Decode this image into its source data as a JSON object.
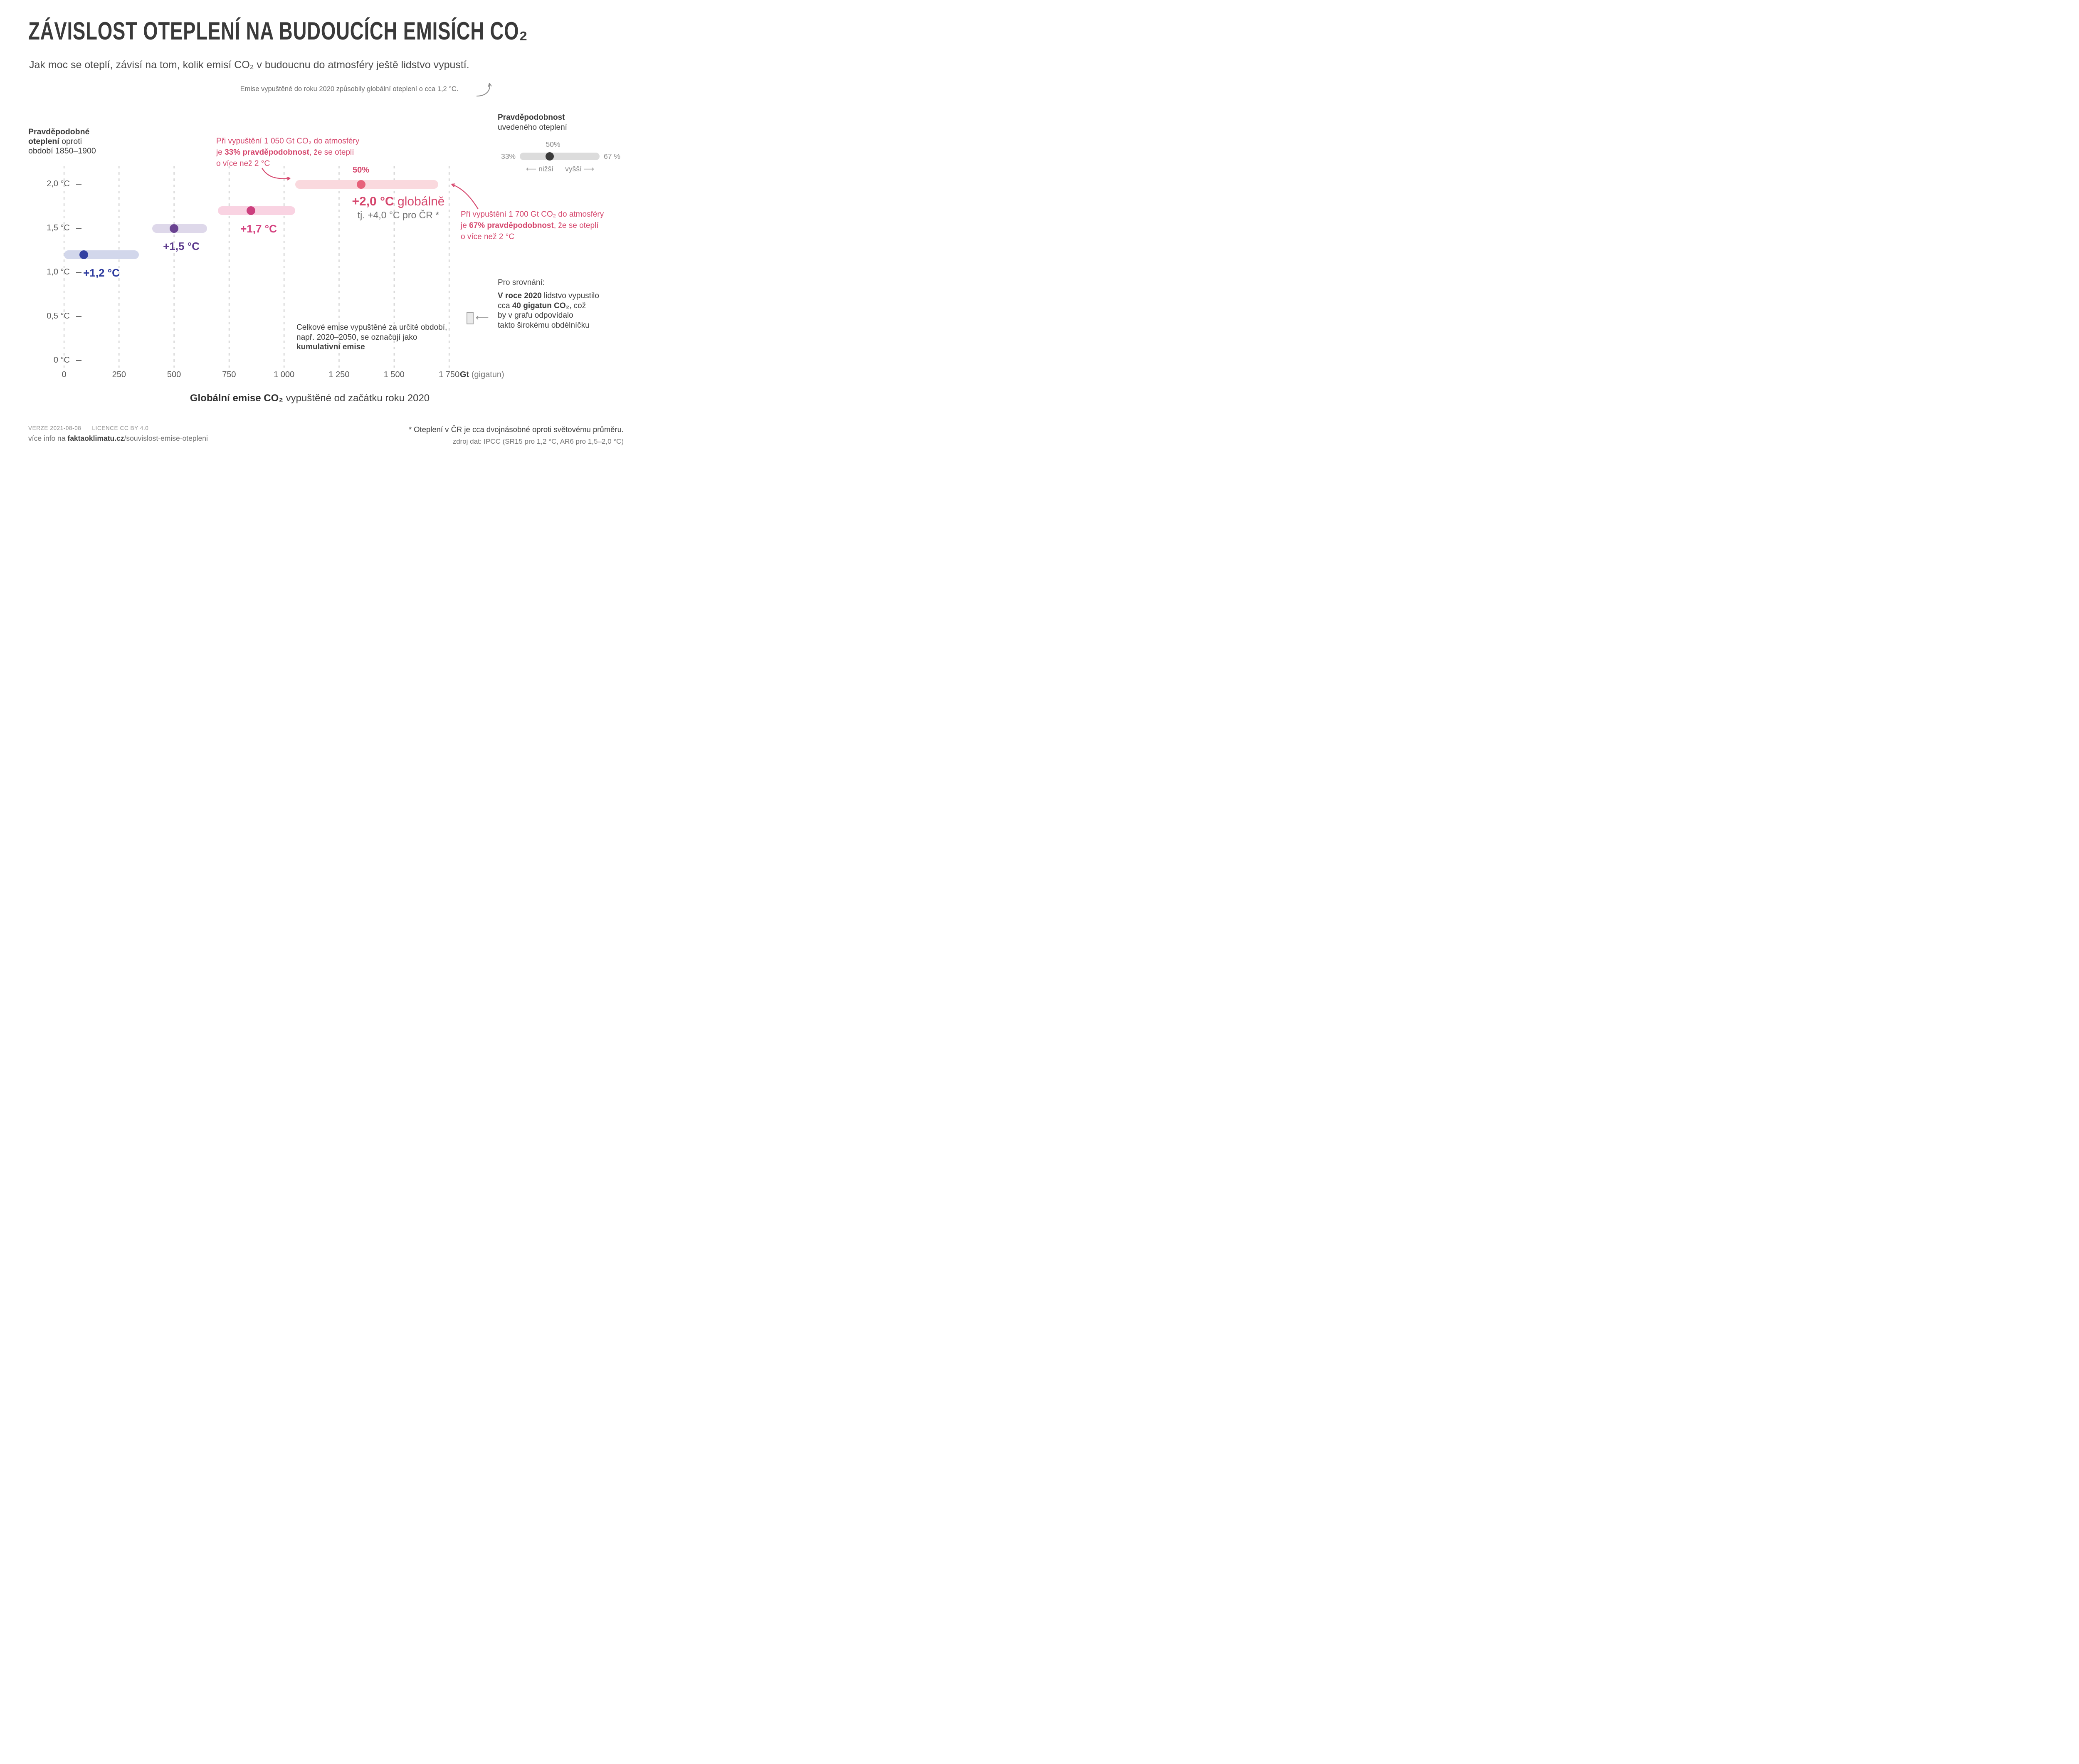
{
  "header": {
    "title": "ZÁVISLOST OTEPLENÍ NA BUDOUCÍCH EMISÍCH CO₂",
    "subtitle": "Jak moc se oteplí, závisí na tom, kolik emisí CO₂ v budoucnu do atmosféry ještě lidstvo vypustí.",
    "note_2020": "Emise vypuštěné do roku 2020 způsobily globální oteplení o cca 1,2 °C."
  },
  "legend": {
    "title": "Pravděpodobnost",
    "subtitle": "uvedeného oteplení",
    "top_label": "50%",
    "left_label": "33%",
    "right_label": "67 %",
    "lower": "⟵ nižší",
    "higher": "vyšší ⟶",
    "track_color": "#dcdcdc",
    "dot_color": "#3a3a3a"
  },
  "y_axis_label": {
    "l1": "Pravděpodobné",
    "l2_bold": "oteplení",
    "l2_rest": " oproti",
    "l3": "období 1850–1900"
  },
  "x_axis": {
    "unit_bold": "Gt",
    "unit_rest": " (gigatun)",
    "caption_bold": "Globální emise CO₂",
    "caption_rest": " vypuštěné od začátku roku 2020"
  },
  "chart_data": {
    "type": "bar",
    "orientation": "horizontal-range-bars",
    "title": "ZÁVISLOST OTEPLENÍ NA BUDOUCÍCH EMISÍCH CO₂",
    "xlabel": "Globální emise CO₂ vypuštěné od začátku roku 2020 (Gt, gigatun)",
    "ylabel": "Pravděpodobné oteplení oproti období 1850–1900 (°C)",
    "xlim": [
      0,
      1750
    ],
    "grid": "vertical-dashed",
    "x_ticks": [
      0,
      250,
      500,
      750,
      1000,
      1250,
      1500,
      1750
    ],
    "x_tick_labels": [
      "0",
      "250",
      "500",
      "750",
      "1 000",
      "1 250",
      "1 500",
      "1 750"
    ],
    "y_ticks": [
      2.0,
      1.5,
      1.0,
      0.5,
      0
    ],
    "y_tick_labels": [
      "2,0 °C",
      "1,5 °C",
      "1,0 °C",
      "0,5 °C",
      "0 °C"
    ],
    "series": [
      {
        "name": "+1,2 °C",
        "warming_c": 1.2,
        "range_gt": [
          0,
          340
        ],
        "median_gt": 90,
        "probability_at_median": "50%",
        "bar_color": "#d2d7eb",
        "dot_color": "#3341a1",
        "label_color": "#2c3a9e"
      },
      {
        "name": "+1,5 °C",
        "warming_c": 1.5,
        "range_gt": [
          400,
          650
        ],
        "median_gt": 500,
        "probability_at_median": "50%",
        "bar_color": "#ded8ea",
        "dot_color": "#6a4391",
        "label_color": "#5c3a8c"
      },
      {
        "name": "+1,7 °C",
        "warming_c": 1.7,
        "range_gt": [
          700,
          1050
        ],
        "median_gt": 850,
        "probability_at_median": "50%",
        "bar_color": "#f9d3e2",
        "dot_color": "#cc3f7e",
        "label_color": "#d4417f"
      },
      {
        "name": "+2,0 °C",
        "warming_c": 2.0,
        "range_gt": [
          1050,
          1700
        ],
        "median_gt": 1350,
        "probability_at_median": "50%",
        "bar_color": "#fad9de",
        "dot_color": "#e7617a",
        "label_color": "#d6486e"
      }
    ]
  },
  "labels_20": {
    "fifty": "50%",
    "big_bold": "+2,0 °C",
    "big_rest": " globálně",
    "sub": "tj. +4,0 °C pro ČR *"
  },
  "annotations": {
    "ann33": {
      "l1": "Při vypuštění 1 050 Gt CO₂ do atmosféry",
      "l2a": "je ",
      "l2b": "33% pravděpodobnost",
      "l2c": ", že se oteplí",
      "l3": "o více než 2 °C"
    },
    "ann67": {
      "l1": "Při vypuštění 1 700 Gt CO₂ do atmosféry",
      "l2a": "je ",
      "l2b": "67% pravděpodobnost",
      "l2c": ", že se oteplí",
      "l3": "o více než 2 °C"
    },
    "cumulative": {
      "l1": "Celkové emise vypuštěné za určité období,",
      "l2": "např. 2020–2050, se označují jako",
      "l3": "kumulativní emise"
    },
    "comparison": {
      "intro": "Pro srovnání:",
      "l1a": "V roce 2020",
      "l1b": " lidstvo vypustilo",
      "l2a": "cca ",
      "l2b": "40 gigatun CO₂",
      "l2c": ", což",
      "l3": "by v grafu odpovídalo",
      "l4": "takto širokému obdélníčku",
      "arrow": "⟵"
    }
  },
  "footer": {
    "version": "VERZE 2021-08-08",
    "license": "LICENCE CC BY 4.0",
    "info_pre": "více info na ",
    "info_domain": "faktaoklimatu.cz",
    "info_path": "/souvislost-emise-otepleni",
    "note_cr": "* Oteplení v ČR je cca dvojnásobné oproti světovému průměru.",
    "source": "zdroj dat: IPCC (SR15 pro 1,2 °C, AR6 pro 1,5–2,0 °C)"
  },
  "accent_color": "#d6486e",
  "grid_color": "#bcbcbc"
}
